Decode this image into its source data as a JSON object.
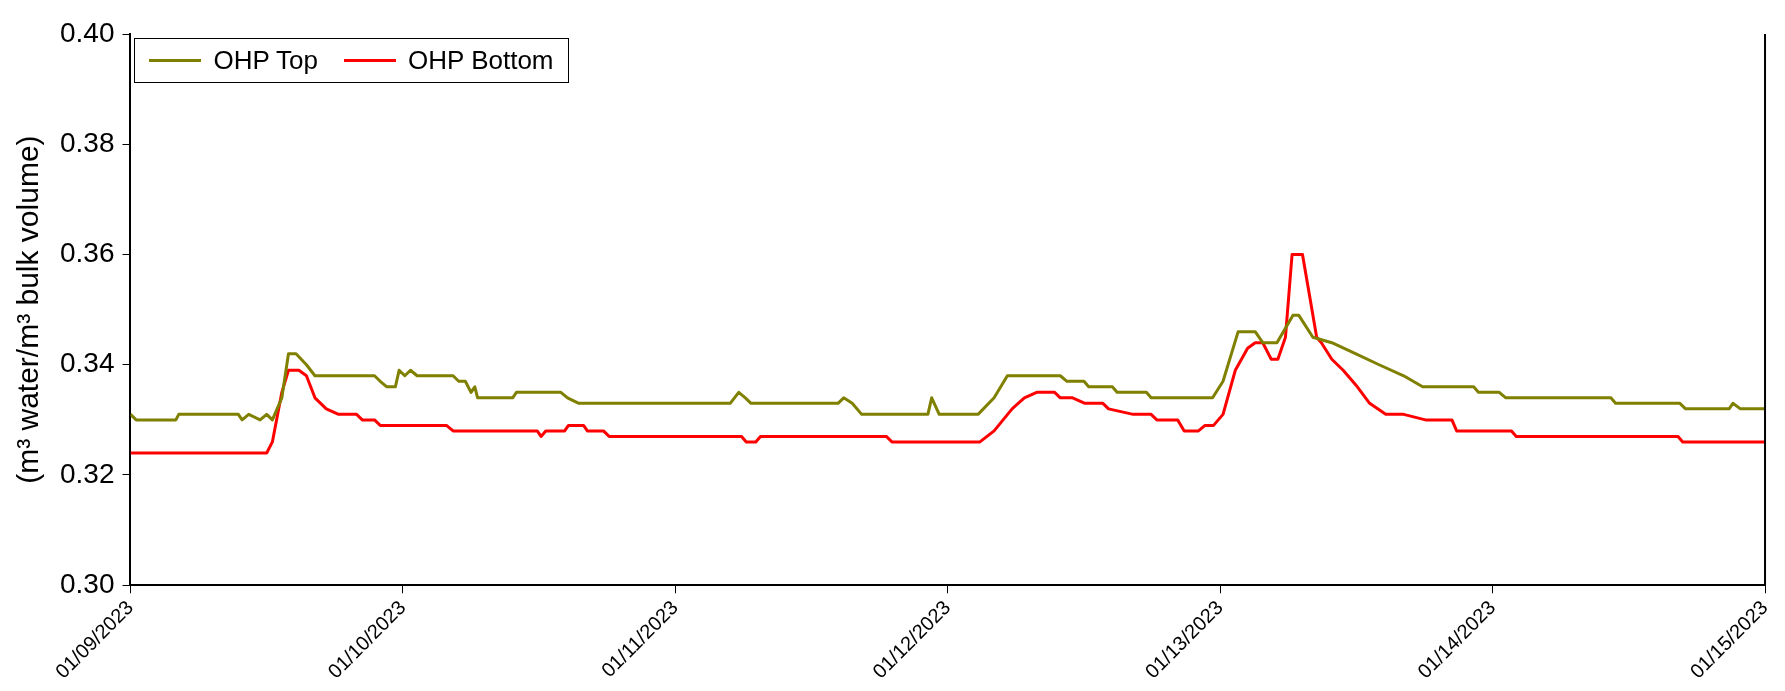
{
  "chart_data": {
    "type": "line",
    "ylabel": "(m³ water/m³ bulk volume)",
    "xlim": [
      "2023-01-09",
      "2023-01-15"
    ],
    "xticks": [
      {
        "value": "2023-01-09",
        "label": "01/09/2023"
      },
      {
        "value": "2023-01-10",
        "label": "01/10/2023"
      },
      {
        "value": "2023-01-11",
        "label": "01/11/2023"
      },
      {
        "value": "2023-01-12",
        "label": "01/12/2023"
      },
      {
        "value": "2023-01-13",
        "label": "01/13/2023"
      },
      {
        "value": "2023-01-14",
        "label": "01/14/2023"
      },
      {
        "value": "2023-01-15",
        "label": "01/15/2023"
      }
    ],
    "ylim": [
      0.3,
      0.4
    ],
    "yticks": [
      {
        "value": 0.3,
        "label": "0.30"
      },
      {
        "value": 0.32,
        "label": "0.32"
      },
      {
        "value": 0.34,
        "label": "0.34"
      },
      {
        "value": 0.36,
        "label": "0.36"
      },
      {
        "value": 0.38,
        "label": "0.38"
      },
      {
        "value": 0.4,
        "label": "0.40"
      }
    ],
    "grid": false,
    "legend": "top left",
    "marker": "none",
    "line_style": "solid",
    "series": [
      {
        "name": "OHP Top",
        "color": "#808000",
        "x": [
          "2023-01-09T00:00",
          "2023-01-09T00:30",
          "2023-01-09T04:00",
          "2023-01-09T04:15",
          "2023-01-09T09:30",
          "2023-01-09T09:50",
          "2023-01-09T10:25",
          "2023-01-09T11:25",
          "2023-01-09T12:00",
          "2023-01-09T12:30",
          "2023-01-09T13:20",
          "2023-01-09T13:55",
          "2023-01-09T14:35",
          "2023-01-09T15:30",
          "2023-01-09T16:15",
          "2023-01-09T21:30",
          "2023-01-09T22:00",
          "2023-01-09T22:35",
          "2023-01-09T23:20",
          "2023-01-09T23:40",
          "2023-01-10T00:10",
          "2023-01-10T00:40",
          "2023-01-10T01:15",
          "2023-01-10T04:25",
          "2023-01-10T04:55",
          "2023-01-10T05:30",
          "2023-01-10T06:00",
          "2023-01-10T06:20",
          "2023-01-10T06:35",
          "2023-01-10T09:40",
          "2023-01-10T10:00",
          "2023-01-10T13:55",
          "2023-01-10T14:30",
          "2023-01-10T15:30",
          "2023-01-11T04:50",
          "2023-01-11T05:35",
          "2023-01-11T06:10",
          "2023-01-11T06:40",
          "2023-01-11T14:20",
          "2023-01-11T14:50",
          "2023-01-11T15:35",
          "2023-01-11T16:25",
          "2023-01-11T22:15",
          "2023-01-11T22:35",
          "2023-01-11T23:15",
          "2023-01-12T02:40",
          "2023-01-12T04:05",
          "2023-01-12T05:15",
          "2023-01-12T09:55",
          "2023-01-12T10:30",
          "2023-01-12T12:00",
          "2023-01-12T12:25",
          "2023-01-12T14:30",
          "2023-01-12T14:55",
          "2023-01-12T17:30",
          "2023-01-12T17:55",
          "2023-01-12T23:20",
          "2023-01-13T00:15",
          "2023-01-13T01:35",
          "2023-01-13T03:05",
          "2023-01-13T03:45",
          "2023-01-13T05:00",
          "2023-01-13T06:25",
          "2023-01-13T06:55",
          "2023-01-13T08:10",
          "2023-01-13T09:50",
          "2023-01-13T11:55",
          "2023-01-13T14:00",
          "2023-01-13T16:10",
          "2023-01-13T17:50",
          "2023-01-13T22:20",
          "2023-01-13T22:45",
          "2023-01-14T00:35",
          "2023-01-14T01:10",
          "2023-01-14T10:25",
          "2023-01-14T10:50",
          "2023-01-14T16:30",
          "2023-01-14T17:00",
          "2023-01-14T20:50",
          "2023-01-14T21:10",
          "2023-01-14T21:50",
          "2023-01-15T00:00"
        ],
        "values": [
          0.331,
          0.33,
          0.33,
          0.331,
          0.331,
          0.33,
          0.331,
          0.33,
          0.331,
          0.33,
          0.334,
          0.342,
          0.342,
          0.34,
          0.338,
          0.338,
          0.337,
          0.336,
          0.336,
          0.339,
          0.338,
          0.339,
          0.338,
          0.338,
          0.337,
          0.337,
          0.335,
          0.336,
          0.334,
          0.334,
          0.335,
          0.335,
          0.334,
          0.333,
          0.333,
          0.335,
          0.334,
          0.333,
          0.333,
          0.334,
          0.333,
          0.331,
          0.331,
          0.334,
          0.331,
          0.331,
          0.334,
          0.338,
          0.338,
          0.337,
          0.337,
          0.336,
          0.336,
          0.335,
          0.335,
          0.334,
          0.334,
          0.337,
          0.346,
          0.346,
          0.344,
          0.344,
          0.349,
          0.349,
          0.345,
          0.344,
          0.342,
          0.34,
          0.338,
          0.336,
          0.336,
          0.335,
          0.335,
          0.334,
          0.334,
          0.333,
          0.333,
          0.332,
          0.332,
          0.333,
          0.332,
          0.332
        ]
      },
      {
        "name": "OHP Bottom",
        "color": "#ff0000",
        "x": [
          "2023-01-09T00:00",
          "2023-01-09T12:00",
          "2023-01-09T12:30",
          "2023-01-09T13:20",
          "2023-01-09T13:55",
          "2023-01-09T14:50",
          "2023-01-09T15:30",
          "2023-01-09T16:15",
          "2023-01-09T17:15",
          "2023-01-09T18:20",
          "2023-01-09T19:55",
          "2023-01-09T20:25",
          "2023-01-09T21:30",
          "2023-01-09T22:00",
          "2023-01-10T03:50",
          "2023-01-10T04:25",
          "2023-01-10T11:50",
          "2023-01-10T12:10",
          "2023-01-10T12:35",
          "2023-01-10T14:15",
          "2023-01-10T14:35",
          "2023-01-10T15:55",
          "2023-01-10T16:15",
          "2023-01-10T17:40",
          "2023-01-10T18:10",
          "2023-01-11T05:50",
          "2023-01-11T06:15",
          "2023-01-11T07:05",
          "2023-01-11T07:30",
          "2023-01-11T18:35",
          "2023-01-11T19:05",
          "2023-01-12T02:50",
          "2023-01-12T04:05",
          "2023-01-12T05:40",
          "2023-01-12T06:45",
          "2023-01-12T07:50",
          "2023-01-12T09:25",
          "2023-01-12T09:55",
          "2023-01-12T11:00",
          "2023-01-12T12:05",
          "2023-01-12T13:40",
          "2023-01-12T14:10",
          "2023-01-12T16:20",
          "2023-01-12T17:55",
          "2023-01-12T18:25",
          "2023-01-12T20:15",
          "2023-01-12T20:50",
          "2023-01-12T22:05",
          "2023-01-12T22:40",
          "2023-01-12T23:25",
          "2023-01-13T00:15",
          "2023-01-13T01:20",
          "2023-01-13T02:25",
          "2023-01-13T03:05",
          "2023-01-13T03:45",
          "2023-01-13T04:30",
          "2023-01-13T05:05",
          "2023-01-13T05:45",
          "2023-01-13T06:20",
          "2023-01-13T07:15",
          "2023-01-13T07:55",
          "2023-01-13T08:30",
          "2023-01-13T08:55",
          "2023-01-13T09:50",
          "2023-01-13T10:50",
          "2023-01-13T12:05",
          "2023-01-13T13:10",
          "2023-01-13T14:35",
          "2023-01-13T16:10",
          "2023-01-13T18:05",
          "2023-01-13T20:25",
          "2023-01-13T20:50",
          "2023-01-14T01:40",
          "2023-01-14T02:05",
          "2023-01-14T16:20",
          "2023-01-14T16:45",
          "2023-01-15T00:00"
        ],
        "values": [
          0.324,
          0.324,
          0.326,
          0.335,
          0.339,
          0.339,
          0.338,
          0.334,
          0.332,
          0.331,
          0.331,
          0.33,
          0.33,
          0.329,
          0.329,
          0.328,
          0.328,
          0.327,
          0.328,
          0.328,
          0.329,
          0.329,
          0.328,
          0.328,
          0.327,
          0.327,
          0.326,
          0.326,
          0.327,
          0.327,
          0.326,
          0.326,
          0.328,
          0.332,
          0.334,
          0.335,
          0.335,
          0.334,
          0.334,
          0.333,
          0.333,
          0.332,
          0.331,
          0.331,
          0.33,
          0.33,
          0.328,
          0.328,
          0.329,
          0.329,
          0.331,
          0.339,
          0.343,
          0.344,
          0.344,
          0.341,
          0.341,
          0.345,
          0.36,
          0.36,
          0.352,
          0.345,
          0.344,
          0.341,
          0.339,
          0.336,
          0.333,
          0.331,
          0.331,
          0.33,
          0.33,
          0.328,
          0.328,
          0.327,
          0.327,
          0.326,
          0.326
        ]
      }
    ]
  }
}
